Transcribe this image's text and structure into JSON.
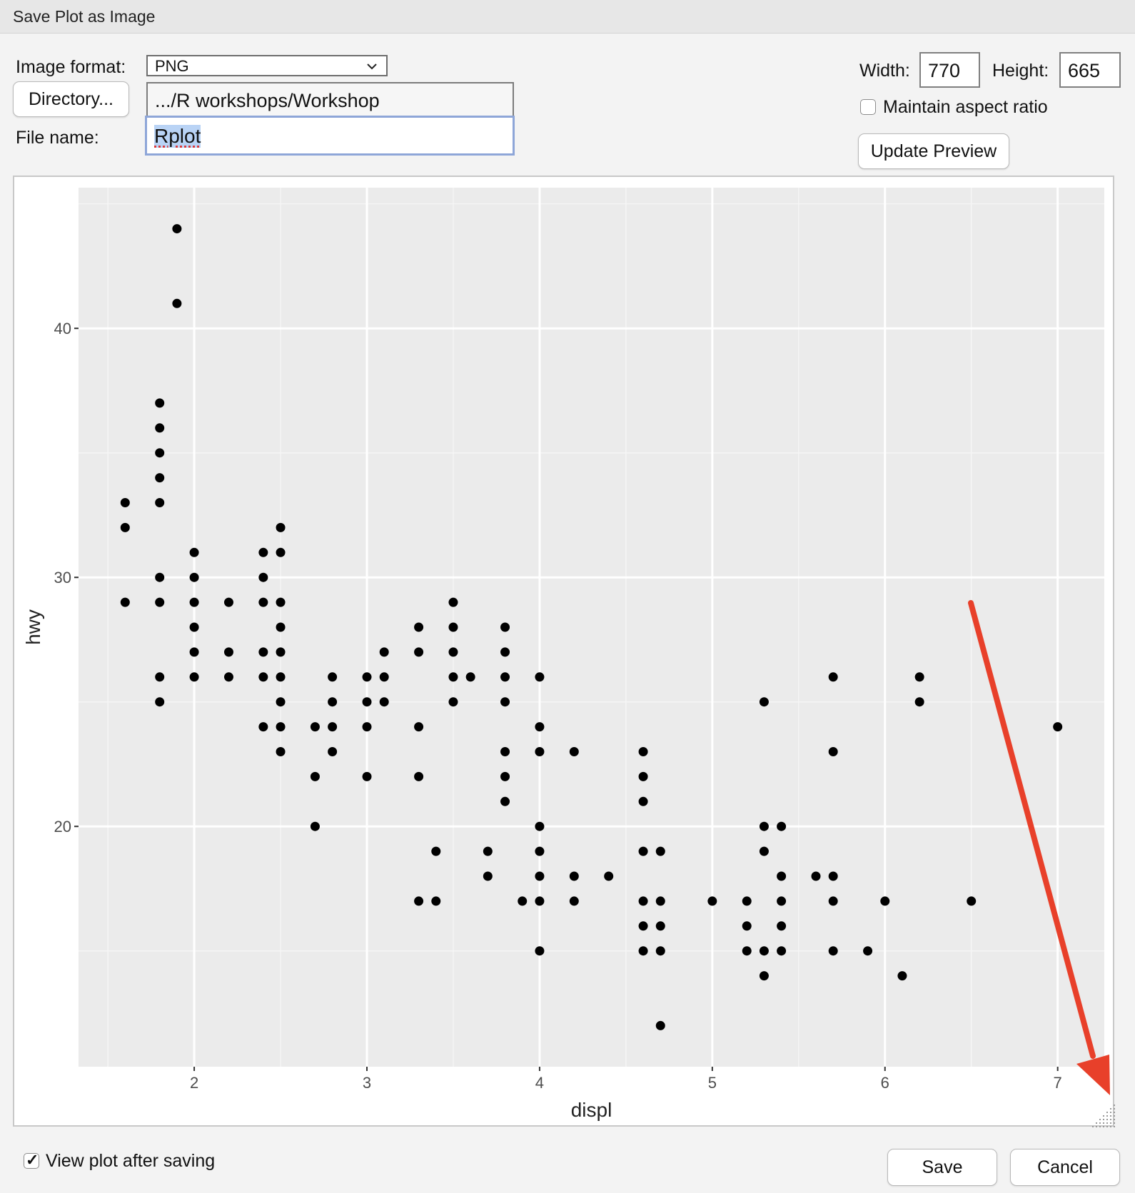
{
  "window": {
    "title": "Save Plot as Image"
  },
  "form": {
    "image_format_label": "Image format:",
    "image_format_value": "PNG",
    "directory_button": "Directory...",
    "directory_path": ".../R workshops/Workshop",
    "file_name_label": "File name:",
    "file_name_value": "Rplot",
    "width_label": "Width:",
    "width_value": "770",
    "height_label": "Height:",
    "height_value": "665",
    "maintain_aspect_label": "Maintain aspect ratio",
    "maintain_aspect_checked": false,
    "update_preview_button": "Update Preview",
    "view_after_saving_label": "View plot after saving",
    "view_after_saving_checked": true,
    "save_button": "Save",
    "cancel_button": "Cancel"
  },
  "colors": {
    "panel_bg": "#ebebeb",
    "grid_major": "#ffffff",
    "point": "#000000",
    "annotation_arrow": "#e8402a",
    "field_focus": "#8ea6d8"
  },
  "chart_data": {
    "type": "scatter",
    "xlabel": "displ",
    "ylabel": "hwy",
    "xlim": [
      1.33,
      7.27
    ],
    "ylim": [
      10.35,
      45.65
    ],
    "x_ticks": [
      2,
      3,
      4,
      5,
      6,
      7
    ],
    "y_ticks": [
      20,
      30,
      40
    ],
    "grid": true,
    "points": [
      [
        1.6,
        33
      ],
      [
        1.6,
        32
      ],
      [
        1.6,
        29
      ],
      [
        1.8,
        37
      ],
      [
        1.8,
        36
      ],
      [
        1.8,
        35
      ],
      [
        1.8,
        34
      ],
      [
        1.8,
        33
      ],
      [
        1.8,
        30
      ],
      [
        1.8,
        29
      ],
      [
        1.8,
        26
      ],
      [
        1.8,
        25
      ],
      [
        1.9,
        44
      ],
      [
        1.9,
        41
      ],
      [
        2.0,
        31
      ],
      [
        2.0,
        30
      ],
      [
        2.0,
        29
      ],
      [
        2.0,
        28
      ],
      [
        2.0,
        27
      ],
      [
        2.0,
        26
      ],
      [
        2.2,
        29
      ],
      [
        2.2,
        27
      ],
      [
        2.2,
        26
      ],
      [
        2.4,
        31
      ],
      [
        2.4,
        30
      ],
      [
        2.4,
        29
      ],
      [
        2.4,
        27
      ],
      [
        2.4,
        26
      ],
      [
        2.4,
        24
      ],
      [
        2.5,
        32
      ],
      [
        2.5,
        31
      ],
      [
        2.5,
        29
      ],
      [
        2.5,
        28
      ],
      [
        2.5,
        27
      ],
      [
        2.5,
        26
      ],
      [
        2.5,
        25
      ],
      [
        2.5,
        24
      ],
      [
        2.5,
        23
      ],
      [
        2.7,
        24
      ],
      [
        2.7,
        22
      ],
      [
        2.7,
        20
      ],
      [
        2.8,
        26
      ],
      [
        2.8,
        25
      ],
      [
        2.8,
        24
      ],
      [
        2.8,
        23
      ],
      [
        3.0,
        26
      ],
      [
        3.0,
        25
      ],
      [
        3.0,
        24
      ],
      [
        3.0,
        22
      ],
      [
        3.1,
        27
      ],
      [
        3.1,
        26
      ],
      [
        3.1,
        25
      ],
      [
        3.3,
        28
      ],
      [
        3.3,
        27
      ],
      [
        3.3,
        24
      ],
      [
        3.3,
        22
      ],
      [
        3.3,
        17
      ],
      [
        3.4,
        19
      ],
      [
        3.4,
        17
      ],
      [
        3.5,
        29
      ],
      [
        3.5,
        28
      ],
      [
        3.5,
        27
      ],
      [
        3.5,
        26
      ],
      [
        3.5,
        25
      ],
      [
        3.6,
        26
      ],
      [
        3.7,
        19
      ],
      [
        3.7,
        18
      ],
      [
        3.8,
        28
      ],
      [
        3.8,
        27
      ],
      [
        3.8,
        26
      ],
      [
        3.8,
        25
      ],
      [
        3.8,
        23
      ],
      [
        3.8,
        22
      ],
      [
        3.8,
        21
      ],
      [
        3.9,
        17
      ],
      [
        4.0,
        26
      ],
      [
        4.0,
        24
      ],
      [
        4.0,
        23
      ],
      [
        4.0,
        20
      ],
      [
        4.0,
        19
      ],
      [
        4.0,
        18
      ],
      [
        4.0,
        17
      ],
      [
        4.0,
        15
      ],
      [
        4.2,
        23
      ],
      [
        4.2,
        18
      ],
      [
        4.2,
        17
      ],
      [
        4.4,
        18
      ],
      [
        4.6,
        23
      ],
      [
        4.6,
        22
      ],
      [
        4.6,
        21
      ],
      [
        4.6,
        19
      ],
      [
        4.6,
        17
      ],
      [
        4.6,
        16
      ],
      [
        4.6,
        15
      ],
      [
        4.7,
        19
      ],
      [
        4.7,
        17
      ],
      [
        4.7,
        16
      ],
      [
        4.7,
        15
      ],
      [
        4.7,
        12
      ],
      [
        5.0,
        17
      ],
      [
        5.2,
        17
      ],
      [
        5.2,
        16
      ],
      [
        5.2,
        15
      ],
      [
        5.3,
        25
      ],
      [
        5.3,
        20
      ],
      [
        5.3,
        19
      ],
      [
        5.3,
        15
      ],
      [
        5.3,
        14
      ],
      [
        5.4,
        20
      ],
      [
        5.4,
        18
      ],
      [
        5.4,
        17
      ],
      [
        5.4,
        16
      ],
      [
        5.4,
        15
      ],
      [
        5.6,
        18
      ],
      [
        5.7,
        26
      ],
      [
        5.7,
        23
      ],
      [
        5.7,
        18
      ],
      [
        5.7,
        17
      ],
      [
        5.7,
        15
      ],
      [
        5.9,
        15
      ],
      [
        6.0,
        17
      ],
      [
        6.1,
        14
      ],
      [
        6.2,
        26
      ],
      [
        6.2,
        25
      ],
      [
        6.5,
        17
      ],
      [
        7.0,
        24
      ]
    ]
  }
}
